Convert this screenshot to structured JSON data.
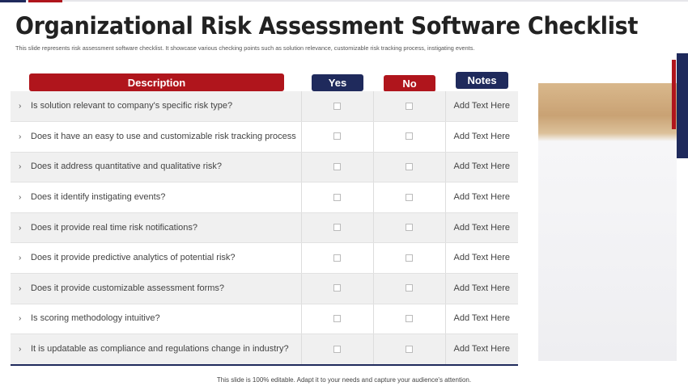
{
  "title": "Organizational Risk Assessment Software Checklist",
  "subtitle": "This slide represents risk assessment software checklist. It showcase various checking points such as solution relevance, customizable risk tracking process, instigating events.",
  "headers": {
    "description": "Description",
    "yes": "Yes",
    "no": "No",
    "notes": "Notes"
  },
  "rows": [
    {
      "text": "Is solution relevant to company's specific risk type?",
      "note": "Add Text Here"
    },
    {
      "text": "Does it have an easy to use and customizable risk   tracking process",
      "note": "Add Text Here"
    },
    {
      "text": "Does it address quantitative and qualitative risk?",
      "note": "Add Text Here"
    },
    {
      "text": "Does it identify instigating events?",
      "note": "Add Text Here"
    },
    {
      "text": "Does it provide real time risk notifications?",
      "note": "Add Text Here"
    },
    {
      "text": "Does it provide predictive analytics of potential risk?",
      "note": "Add Text Here"
    },
    {
      "text": "Does it provide customizable assessment forms?",
      "note": "Add Text Here"
    },
    {
      "text": "Is scoring methodology intuitive?",
      "note": "Add Text Here"
    },
    {
      "text": "It is updatable as compliance and regulations change in industry?",
      "note": "Add Text Here"
    }
  ],
  "footer": "This slide is 100% editable. Adapt it to your needs and capture your audience's attention.",
  "colors": {
    "red": "#b0151c",
    "navy": "#1f2a5c"
  }
}
